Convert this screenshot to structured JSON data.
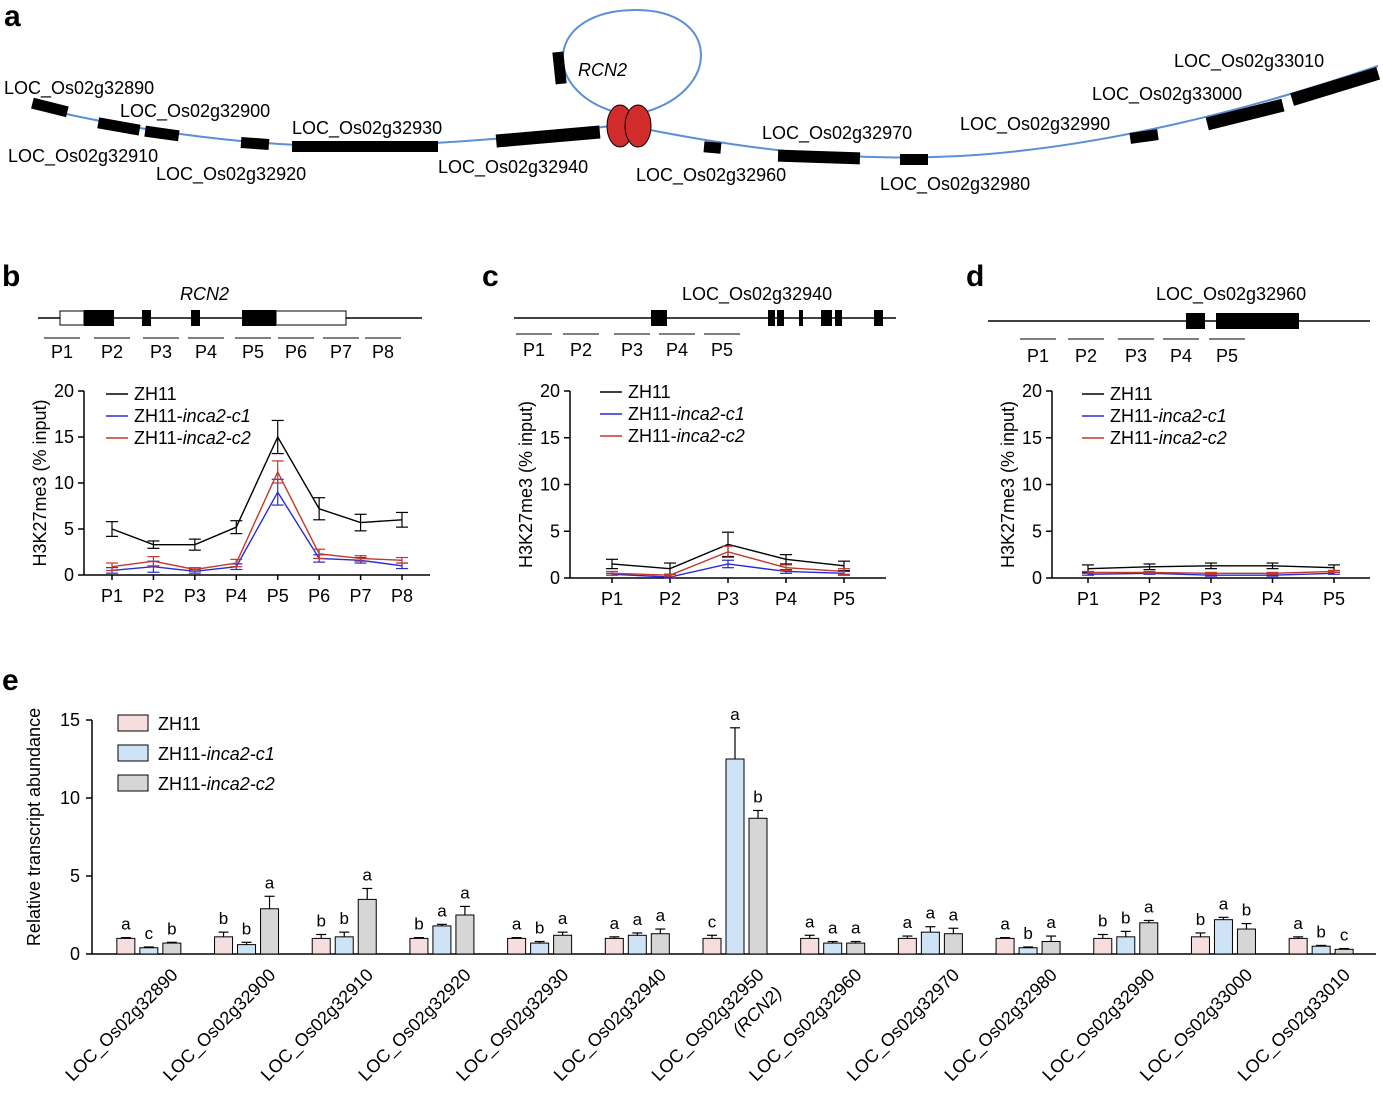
{
  "panel_labels": [
    "a",
    "b",
    "c",
    "d",
    "e"
  ],
  "colors": {
    "ZH11": "#000000",
    "inca2_c1": "#2a2ad6",
    "inca2_c2": "#c0392b",
    "bar_ZH11": "#f6dede",
    "bar_inca2_c1": "#cfe3f7",
    "bar_inca2_c2": "#d6d6d6",
    "chromatin_line": "#5b8fd6",
    "loop_anchor": "#d22b2b"
  },
  "panel_a": {
    "loop_gene": "RCN2",
    "genes": [
      "LOC_Os02g32890",
      "LOC_Os02g32900",
      "LOC_Os02g32910",
      "LOC_Os02g32920",
      "LOC_Os02g32930",
      "LOC_Os02g32940",
      "LOC_Os02g32960",
      "LOC_Os02g32970",
      "LOC_Os02g32980",
      "LOC_Os02g32990",
      "LOC_Os02g33000",
      "LOC_Os02g33010"
    ]
  },
  "panel_b": {
    "gene": "RCN2",
    "regions": [
      "P1",
      "P2",
      "P3",
      "P4",
      "P5",
      "P6",
      "P7",
      "P8"
    ]
  },
  "panel_c": {
    "gene": "LOC_Os02g32940",
    "regions": [
      "P1",
      "P2",
      "P3",
      "P4",
      "P5"
    ]
  },
  "panel_d": {
    "gene": "LOC_Os02g32960",
    "regions": [
      "P1",
      "P2",
      "P3",
      "P4",
      "P5"
    ]
  },
  "chart_data": [
    {
      "type": "line",
      "panel": "b",
      "ylabel": "H3K27me3 (% input)",
      "ylim": [
        0,
        20
      ],
      "yticks": [
        0,
        5,
        10,
        15,
        20
      ],
      "categories": [
        "P1",
        "P2",
        "P3",
        "P4",
        "P5",
        "P6",
        "P7",
        "P8"
      ],
      "legend": {
        "placement": "top-left",
        "items": [
          {
            "prefix": "ZH11",
            "italic": ""
          },
          {
            "prefix": "ZH11-",
            "italic": "inca2-c1"
          },
          {
            "prefix": "ZH11-",
            "italic": "inca2-c2"
          }
        ]
      },
      "series": [
        {
          "name": "ZH11",
          "values": [
            5.0,
            3.3,
            3.3,
            5.2,
            15.0,
            7.2,
            5.7,
            6.0
          ],
          "errors": [
            0.8,
            0.4,
            0.6,
            0.7,
            1.8,
            1.2,
            0.9,
            0.8
          ]
        },
        {
          "name": "ZH11-inca2-c1",
          "values": [
            0.5,
            0.9,
            0.4,
            0.9,
            9.0,
            1.8,
            1.6,
            1.0
          ],
          "errors": [
            0.3,
            0.6,
            0.2,
            0.3,
            1.4,
            0.4,
            0.3,
            0.3
          ]
        },
        {
          "name": "ZH11-inca2-c2",
          "values": [
            0.9,
            1.5,
            0.6,
            1.3,
            11.2,
            2.3,
            1.8,
            1.6
          ],
          "errors": [
            0.4,
            0.5,
            0.2,
            0.4,
            1.2,
            0.5,
            0.3,
            0.3
          ]
        }
      ]
    },
    {
      "type": "line",
      "panel": "c",
      "ylabel": "H3K27me3 (% input)",
      "ylim": [
        0,
        20
      ],
      "yticks": [
        0,
        5,
        10,
        15,
        20
      ],
      "categories": [
        "P1",
        "P2",
        "P3",
        "P4",
        "P5"
      ],
      "legend": {
        "placement": "top-left",
        "items": [
          {
            "prefix": "ZH11",
            "italic": ""
          },
          {
            "prefix": "ZH11-",
            "italic": "inca2-c1"
          },
          {
            "prefix": "ZH11-",
            "italic": "inca2-c2"
          }
        ]
      },
      "series": [
        {
          "name": "ZH11",
          "values": [
            1.5,
            1.0,
            3.6,
            2.0,
            1.3
          ],
          "errors": [
            0.5,
            0.6,
            1.3,
            0.5,
            0.5
          ]
        },
        {
          "name": "ZH11-inca2-c1",
          "values": [
            0.4,
            0.1,
            1.5,
            0.7,
            0.5
          ],
          "errors": [
            0.1,
            0.1,
            0.4,
            0.2,
            0.2
          ]
        },
        {
          "name": "ZH11-inca2-c2",
          "values": [
            0.5,
            0.3,
            2.8,
            1.1,
            0.7
          ],
          "errors": [
            0.2,
            0.1,
            0.6,
            0.3,
            0.3
          ]
        }
      ]
    },
    {
      "type": "line",
      "panel": "d",
      "ylabel": "H3K27me3 (% input)",
      "ylim": [
        0,
        20
      ],
      "yticks": [
        0,
        5,
        10,
        15,
        20
      ],
      "categories": [
        "P1",
        "P2",
        "P3",
        "P4",
        "P5"
      ],
      "legend": {
        "placement": "top-left",
        "items": [
          {
            "prefix": "ZH11",
            "italic": ""
          },
          {
            "prefix": "ZH11-",
            "italic": "inca2-c1"
          },
          {
            "prefix": "ZH11-",
            "italic": "inca2-c2"
          }
        ]
      },
      "series": [
        {
          "name": "ZH11",
          "values": [
            1.0,
            1.2,
            1.3,
            1.3,
            1.1
          ],
          "errors": [
            0.4,
            0.3,
            0.3,
            0.3,
            0.3
          ]
        },
        {
          "name": "ZH11-inca2-c1",
          "values": [
            0.4,
            0.5,
            0.3,
            0.3,
            0.5
          ],
          "errors": [
            0.1,
            0.1,
            0.1,
            0.1,
            0.1
          ]
        },
        {
          "name": "ZH11-inca2-c2",
          "values": [
            0.6,
            0.6,
            0.5,
            0.5,
            0.7
          ],
          "errors": [
            0.1,
            0.1,
            0.1,
            0.1,
            0.1
          ]
        }
      ]
    },
    {
      "type": "bar",
      "panel": "e",
      "ylabel": "Relative transcript abundance",
      "ylim": [
        0,
        15
      ],
      "yticks": [
        0,
        5,
        10,
        15
      ],
      "categories": [
        "LOC_Os02g32890",
        "LOC_Os02g32900",
        "LOC_Os02g32910",
        "LOC_Os02g32920",
        "LOC_Os02g32930",
        "LOC_Os02g32940",
        "LOC_Os02g32950",
        "LOC_Os02g32960",
        "LOC_Os02g32970",
        "LOC_Os02g32980",
        "LOC_Os02g32990",
        "LOC_Os02g33000",
        "LOC_Os02g33010"
      ],
      "category_sublabels": [
        "",
        "",
        "",
        "",
        "",
        "",
        "(RCN2)",
        "",
        "",
        "",
        "",
        "",
        ""
      ],
      "legend": {
        "placement": "top-left",
        "items": [
          {
            "prefix": "ZH11",
            "italic": ""
          },
          {
            "prefix": "ZH11-",
            "italic": "inca2-c1"
          },
          {
            "prefix": "ZH11-",
            "italic": "inca2-c2"
          }
        ]
      },
      "series": [
        {
          "name": "ZH11",
          "values": [
            1.0,
            1.1,
            1.0,
            1.0,
            1.0,
            1.0,
            1.0,
            1.0,
            1.0,
            1.0,
            1.0,
            1.1,
            1.0
          ],
          "errors": [
            0.05,
            0.3,
            0.25,
            0.05,
            0.05,
            0.1,
            0.2,
            0.2,
            0.15,
            0.05,
            0.25,
            0.25,
            0.1
          ],
          "letters": [
            "a",
            "b",
            "b",
            "b",
            "a",
            "a",
            "c",
            "a",
            "a",
            "a",
            "b",
            "b",
            "a"
          ]
        },
        {
          "name": "ZH11-inca2-c1",
          "values": [
            0.4,
            0.6,
            1.1,
            1.8,
            0.7,
            1.2,
            12.5,
            0.7,
            1.4,
            0.4,
            1.1,
            2.2,
            0.5
          ],
          "errors": [
            0.05,
            0.15,
            0.3,
            0.1,
            0.1,
            0.15,
            2.0,
            0.1,
            0.35,
            0.05,
            0.35,
            0.15,
            0.05
          ],
          "letters": [
            "c",
            "b",
            "b",
            "a",
            "b",
            "a",
            "a",
            "a",
            "a",
            "b",
            "b",
            "a",
            "b"
          ]
        },
        {
          "name": "ZH11-inca2-c2",
          "values": [
            0.7,
            2.9,
            3.5,
            2.5,
            1.2,
            1.3,
            8.7,
            0.7,
            1.3,
            0.8,
            2.0,
            1.6,
            0.3
          ],
          "errors": [
            0.05,
            0.8,
            0.7,
            0.55,
            0.2,
            0.3,
            0.5,
            0.1,
            0.35,
            0.35,
            0.15,
            0.35,
            0.05
          ],
          "letters": [
            "b",
            "a",
            "a",
            "a",
            "a",
            "a",
            "b",
            "a",
            "a",
            "a",
            "a",
            "b",
            "c"
          ]
        }
      ]
    }
  ]
}
